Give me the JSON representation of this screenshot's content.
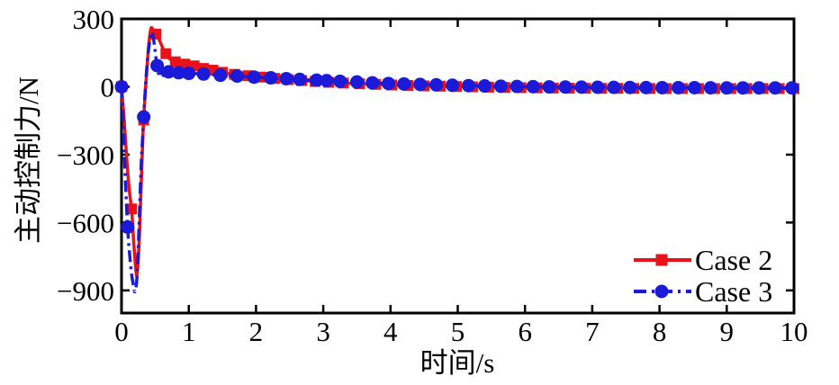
{
  "figure": {
    "background": "#ffffff",
    "axis_color": "#000000"
  },
  "chart_data": {
    "type": "line",
    "title": "",
    "xlabel": "时间/s",
    "ylabel": "主动控制力/N",
    "xlim": [
      0,
      10
    ],
    "ylim": [
      -1000,
      300
    ],
    "grid": false,
    "legend_position": "inside lower right",
    "x_ticks": [
      0,
      1,
      2,
      3,
      4,
      5,
      6,
      7,
      8,
      9,
      10
    ],
    "x_tick_labels": [
      "0",
      "1",
      "2",
      "3",
      "4",
      "5",
      "6",
      "7",
      "8",
      "9",
      "10"
    ],
    "y_ticks": [
      300,
      0,
      -300,
      -600,
      -900
    ],
    "y_tick_labels": [
      "300",
      "0",
      "−300",
      "−600",
      "−900"
    ],
    "series": [
      {
        "name": "Case 2",
        "color": "#e81218",
        "line_style": "solid",
        "marker": "square",
        "points": [
          [
            0,
            0
          ],
          [
            0.04,
            -150
          ],
          [
            0.08,
            -330
          ],
          [
            0.12,
            -470
          ],
          [
            0.15,
            -540
          ],
          [
            0.18,
            -680
          ],
          [
            0.21,
            -800
          ],
          [
            0.23,
            -828
          ],
          [
            0.26,
            -700
          ],
          [
            0.29,
            -450
          ],
          [
            0.32,
            -200
          ],
          [
            0.35,
            -40
          ],
          [
            0.38,
            90
          ],
          [
            0.41,
            200
          ],
          [
            0.44,
            260
          ],
          [
            0.48,
            245
          ],
          [
            0.53,
            225
          ],
          [
            0.58,
            195
          ],
          [
            0.63,
            160
          ],
          [
            0.7,
            128
          ],
          [
            0.78,
            112
          ],
          [
            0.9,
            102
          ],
          [
            1.05,
            95
          ],
          [
            1.2,
            82
          ],
          [
            1.35,
            74
          ],
          [
            1.5,
            64
          ],
          [
            1.65,
            56
          ],
          [
            1.8,
            51
          ],
          [
            2.0,
            45
          ],
          [
            2.25,
            38
          ],
          [
            2.5,
            31
          ],
          [
            2.75,
            26
          ],
          [
            3.0,
            21
          ],
          [
            3.25,
            17
          ],
          [
            3.5,
            14
          ],
          [
            3.75,
            11
          ],
          [
            4.0,
            8
          ],
          [
            4.5,
            4
          ],
          [
            5.0,
            1
          ],
          [
            5.5,
            -2
          ],
          [
            6.0,
            -4
          ],
          [
            6.5,
            -6
          ],
          [
            7.0,
            -7
          ],
          [
            7.5,
            -7
          ],
          [
            8.0,
            -8
          ],
          [
            8.5,
            -8
          ],
          [
            9.0,
            -8
          ],
          [
            9.5,
            -8
          ],
          [
            10.0,
            -8
          ]
        ],
        "marker_t": [
          0,
          0.15,
          0.33,
          0.51,
          0.66,
          0.8,
          0.94,
          1.08,
          1.22,
          1.36,
          1.5,
          1.68,
          1.88,
          2.08,
          2.28,
          2.48,
          2.68,
          2.88,
          3.08,
          3.3,
          3.54,
          3.78,
          4.02,
          4.26,
          4.5,
          4.74,
          4.98,
          5.22,
          5.46,
          5.7,
          5.94,
          6.18,
          6.42,
          6.66,
          6.9,
          7.14,
          7.38,
          7.62,
          7.86,
          8.1,
          8.34,
          8.58,
          8.82,
          9.06,
          9.3,
          9.54,
          9.78,
          10.0
        ]
      },
      {
        "name": "Case 3",
        "color": "#1a1ad8",
        "line_style": "dash-dot",
        "marker": "circle",
        "points": [
          [
            0,
            0
          ],
          [
            0.03,
            -200
          ],
          [
            0.06,
            -430
          ],
          [
            0.09,
            -620
          ],
          [
            0.12,
            -740
          ],
          [
            0.15,
            -830
          ],
          [
            0.18,
            -880
          ],
          [
            0.2,
            -905
          ],
          [
            0.23,
            -840
          ],
          [
            0.26,
            -620
          ],
          [
            0.29,
            -360
          ],
          [
            0.31,
            -240
          ],
          [
            0.34,
            -80
          ],
          [
            0.37,
            60
          ],
          [
            0.4,
            160
          ],
          [
            0.43,
            220
          ],
          [
            0.46,
            240
          ],
          [
            0.49,
            180
          ],
          [
            0.52,
            110
          ],
          [
            0.55,
            60
          ],
          [
            0.58,
            45
          ],
          [
            0.6,
            88
          ],
          [
            0.62,
            50
          ],
          [
            0.65,
            72
          ],
          [
            0.7,
            66
          ],
          [
            0.8,
            63
          ],
          [
            0.95,
            60
          ],
          [
            1.1,
            58
          ],
          [
            1.25,
            56
          ],
          [
            1.4,
            52
          ],
          [
            1.6,
            49
          ],
          [
            1.8,
            46
          ],
          [
            2.0,
            42
          ],
          [
            2.25,
            39
          ],
          [
            2.5,
            35
          ],
          [
            2.75,
            31
          ],
          [
            3.0,
            28
          ],
          [
            3.25,
            24
          ],
          [
            3.5,
            21
          ],
          [
            3.75,
            17
          ],
          [
            4.0,
            14
          ],
          [
            4.25,
            12
          ],
          [
            4.5,
            10
          ],
          [
            4.75,
            8
          ],
          [
            5.0,
            6
          ],
          [
            5.5,
            3
          ],
          [
            6.0,
            1
          ],
          [
            6.5,
            -1
          ],
          [
            7.0,
            -2
          ],
          [
            7.5,
            -3
          ],
          [
            8.0,
            -4
          ],
          [
            8.5,
            -4
          ],
          [
            9.0,
            -5
          ],
          [
            9.5,
            -5
          ],
          [
            10.0,
            -5
          ]
        ],
        "marker_t": [
          0,
          0.09,
          0.33,
          0.53,
          0.7,
          0.85,
          1.0,
          1.22,
          1.47,
          1.72,
          1.97,
          2.22,
          2.45,
          2.65,
          2.9,
          3.05,
          3.25,
          3.5,
          3.73,
          3.97,
          4.2,
          4.44,
          4.68,
          4.92,
          5.16,
          5.4,
          5.64,
          5.88,
          6.12,
          6.36,
          6.6,
          6.84,
          7.08,
          7.32,
          7.56,
          7.8,
          8.04,
          8.28,
          8.52,
          8.76,
          9.0,
          9.24,
          9.48,
          9.72,
          9.97
        ]
      }
    ]
  },
  "legend": {
    "items": [
      {
        "label": "Case 2"
      },
      {
        "label": "Case 3"
      }
    ]
  }
}
